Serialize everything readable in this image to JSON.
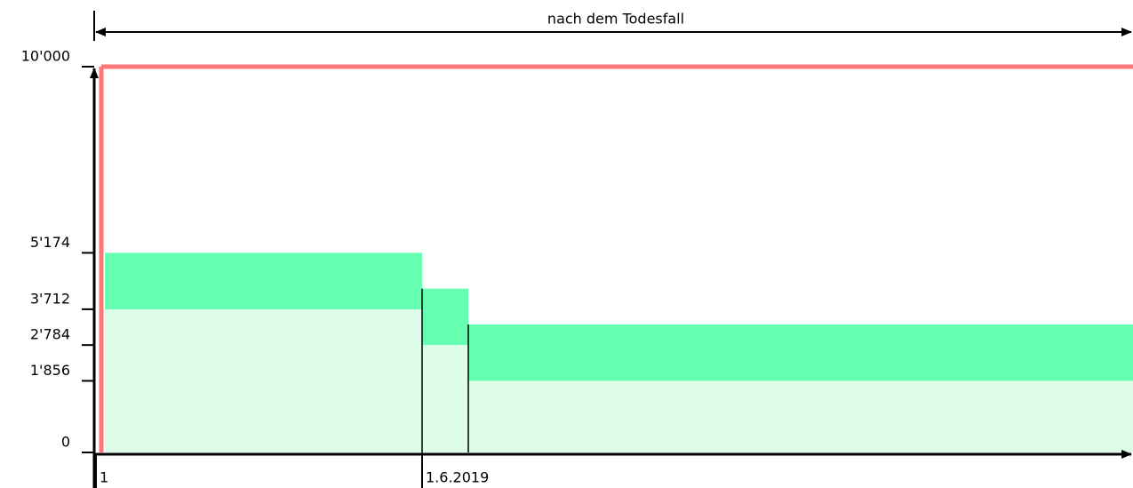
{
  "chart_data": {
    "type": "stacked-step",
    "annotation": "nach dem Todesfall",
    "ylim": [
      0,
      10000
    ],
    "yticks": [
      0,
      {
        "value": 1856,
        "label": "1'856"
      },
      {
        "value": 2784,
        "label": "2'784"
      },
      {
        "value": 3712,
        "label": "3'712"
      },
      {
        "value": 5174,
        "label": "5'174"
      },
      {
        "value": 10000,
        "label": "10'000"
      }
    ],
    "x_labels": [
      "1",
      "1.6.2019"
    ],
    "series": [
      {
        "color": "#ddfde9",
        "values": [
          3712,
          2784,
          1856
        ]
      },
      {
        "color": "#66ffb2",
        "values": [
          1462,
          1462,
          1462
        ]
      }
    ],
    "limit": {
      "value": 10000,
      "color": "#ff7777"
    }
  }
}
